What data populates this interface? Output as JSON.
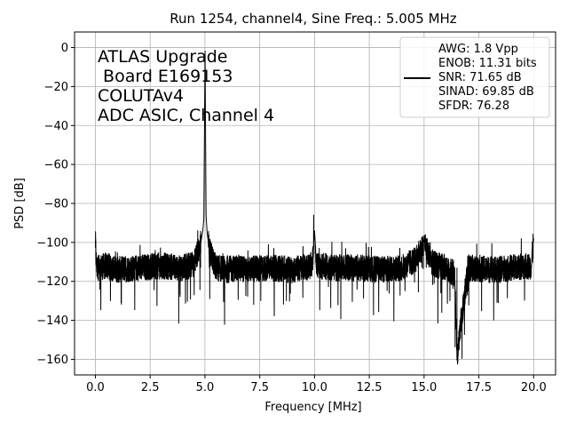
{
  "chart_data": {
    "type": "line",
    "title": "Run 1254, channel4, Sine Freq.: 5.005 MHz",
    "xlabel": "Frequency [MHz]",
    "ylabel": "PSD [dB]",
    "xlim": [
      -0.95,
      21.0
    ],
    "ylim": [
      -168,
      8
    ],
    "xticks": [
      0.0,
      2.5,
      5.0,
      7.5,
      10.0,
      12.5,
      15.0,
      17.5,
      20.0
    ],
    "xtick_labels": [
      "0.0",
      "2.5",
      "5.0",
      "7.5",
      "10.0",
      "12.5",
      "15.0",
      "17.5",
      "20.0"
    ],
    "yticks": [
      0,
      -20,
      -40,
      -60,
      -80,
      -100,
      -120,
      -140,
      -160
    ],
    "ytick_labels": [
      "0",
      "−20",
      "−40",
      "−60",
      "−80",
      "−100",
      "−120",
      "−140",
      "−160"
    ],
    "grid": true,
    "legend_placement": "top-right",
    "series_color": "#000000",
    "series": [
      {
        "name": "",
        "noise_floor_db": -113,
        "x": [
          0.0,
          0.05,
          0.5,
          1.0,
          2.0,
          3.0,
          4.0,
          4.5,
          4.8,
          4.9,
          4.95,
          5.005,
          5.05,
          5.1,
          5.2,
          5.5,
          6.0,
          6.5,
          7.0,
          8.0,
          9.0,
          9.9,
          10.0,
          10.1,
          11.0,
          12.0,
          13.0,
          14.0,
          14.6,
          14.9,
          15.0,
          15.1,
          15.4,
          16.0,
          16.4,
          16.5,
          17.0,
          18.0,
          19.0,
          19.9,
          20.0
        ],
        "y": [
          -99,
          -113,
          -112,
          -114,
          -113,
          -112,
          -113,
          -111,
          -101,
          -94,
          -88,
          0,
          -86,
          -95,
          -104,
          -113,
          -114,
          -113,
          -114,
          -113,
          -114,
          -112,
          -94,
          -112,
          -113,
          -113,
          -114,
          -113,
          -109,
          -103,
          -99,
          -103,
          -111,
          -113,
          -116,
          -160,
          -113,
          -114,
          -113,
          -112,
          -98
        ]
      }
    ]
  },
  "annotation_lines": [
    "ATLAS Upgrade",
    " Board E169153",
    "COLUTAv4",
    "ADC ASIC, Channel 4"
  ],
  "legend_lines": [
    "AWG: 1.8 Vpp",
    "ENOB: 11.31 bits",
    "SNR: 71.65 dB",
    "SINAD: 69.85 dB",
    "SFDR: 76.28"
  ]
}
